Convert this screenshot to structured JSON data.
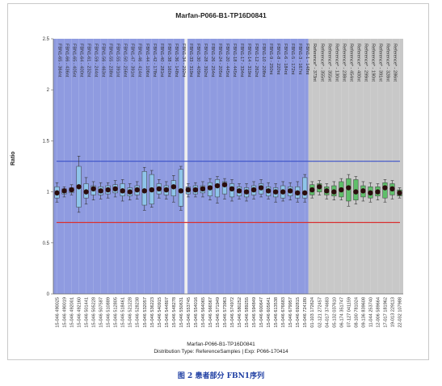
{
  "chart_title": "Marfan-P066-B1-TP16D0841",
  "ylabel": "Ratio",
  "footer": {
    "name": "Marfan-P066-B1-TP16D0841",
    "distribution": "Distribution Type: ReferenceSamples | Exp: P066-170414"
  },
  "caption": "图 2 患者部分 FBN1序列",
  "colors": {
    "fbn1_band": "#8f9be0",
    "reference_band": "#c8c8c8",
    "upper_line": "#3a52c8",
    "lower_line": "#d93030",
    "box_fbn1": "#8fc5ea",
    "box_reference": "#5fbf6a",
    "point": "#2a0d0d"
  },
  "chart_data": {
    "type": "box",
    "ylim": [
      0,
      2.5
    ],
    "yticks": [
      "0",
      "0.5",
      "1",
      "1.5",
      "2",
      "2.5"
    ],
    "upper_threshold": 1.3,
    "lower_threshold": 0.7,
    "probes": [
      {
        "label": "FBN1-65 - 364nt",
        "sample": "15-046 490025",
        "group": "fbn1",
        "value": 0.99,
        "box": [
          0.94,
          1.05
        ],
        "whisker": [
          0.9,
          1.09
        ]
      },
      {
        "label": "FBN1-66 - 436nt",
        "sample": "15-046 490019",
        "group": "fbn1",
        "value": 1.01,
        "box": [
          0.98,
          1.03
        ],
        "whisker": [
          0.95,
          1.05
        ]
      },
      {
        "label": "FBN1-65 - 405nt",
        "sample": "15-046 492001",
        "group": "fbn1",
        "value": 1.02,
        "box": [
          0.99,
          1.04
        ],
        "whisker": [
          0.97,
          1.07
        ]
      },
      {
        "label": "FBN1-64 - 400nt",
        "sample": "15-046 492160",
        "group": "fbn1",
        "value": 1.05,
        "box": [
          0.85,
          1.25
        ],
        "whisker": [
          0.8,
          1.35
        ]
      },
      {
        "label": "FBN1-61 - 232nt",
        "sample": "15-046 501441",
        "group": "fbn1",
        "value": 1.0,
        "box": [
          0.94,
          1.08
        ],
        "whisker": [
          0.88,
          1.14
        ]
      },
      {
        "label": "FBN1-59 - 244nt",
        "sample": "15-046 505228",
        "group": "fbn1",
        "value": 1.03,
        "box": [
          0.97,
          1.06
        ],
        "whisker": [
          0.92,
          1.1
        ]
      },
      {
        "label": "FBN1-56 - 463nt",
        "sample": "15-046 507587",
        "group": "fbn1",
        "value": 1.01,
        "box": [
          0.97,
          1.05
        ],
        "whisker": [
          0.93,
          1.09
        ]
      },
      {
        "label": "FBN1-55 - 238nt",
        "sample": "15-046 510889",
        "group": "fbn1",
        "value": 1.02,
        "box": [
          0.98,
          1.06
        ],
        "whisker": [
          0.94,
          1.09
        ]
      },
      {
        "label": "FBN1-55 - 391nt",
        "sample": "15-046 512805",
        "group": "fbn1",
        "value": 1.03,
        "box": [
          0.99,
          1.07
        ],
        "whisker": [
          0.95,
          1.11
        ]
      },
      {
        "label": "FBN1-50 - 256nt",
        "sample": "15-046 518461",
        "group": "fbn1",
        "value": 1.01,
        "box": [
          0.96,
          1.08
        ],
        "whisker": [
          0.91,
          1.12
        ]
      },
      {
        "label": "FBN1-47 - 391nt",
        "sample": "15-046 521228",
        "group": "fbn1",
        "value": 1.0,
        "box": [
          0.96,
          1.04
        ],
        "whisker": [
          0.92,
          1.08
        ]
      },
      {
        "label": "FBN1-46 - 414nt",
        "sample": "15-046 528238",
        "group": "fbn1",
        "value": 1.02,
        "box": [
          0.97,
          1.06
        ],
        "whisker": [
          0.93,
          1.1
        ]
      },
      {
        "label": "FBN1-44 - 106nt",
        "sample": "15-046 532057",
        "group": "fbn1",
        "value": 1.01,
        "box": [
          0.87,
          1.2
        ],
        "whisker": [
          0.82,
          1.24
        ]
      },
      {
        "label": "FBN1-42 - 178nt",
        "sample": "15-046 536223",
        "group": "fbn1",
        "value": 1.02,
        "box": [
          0.88,
          1.17
        ],
        "whisker": [
          0.85,
          1.21
        ]
      },
      {
        "label": "FBN1-40 - 281nt",
        "sample": "15-046 540915",
        "group": "fbn1",
        "value": 1.03,
        "box": [
          0.98,
          1.08
        ],
        "whisker": [
          0.94,
          1.12
        ]
      },
      {
        "label": "FBN1-38 - 160nt",
        "sample": "15-046 544807",
        "group": "fbn1",
        "value": 1.02,
        "box": [
          0.97,
          1.06
        ],
        "whisker": [
          0.93,
          1.1
        ]
      },
      {
        "label": "FBN1-36 - 148nt",
        "sample": "15-046 548278",
        "group": "fbn1",
        "value": 1.05,
        "box": [
          0.96,
          1.11
        ],
        "whisker": [
          0.9,
          1.16
        ]
      },
      {
        "label": "FBN1-34 - 292nt",
        "sample": "15-046 550631",
        "group": "fbn1",
        "value": 1.01,
        "box": [
          0.86,
          1.22
        ],
        "whisker": [
          0.82,
          1.25
        ]
      },
      {
        "label": "FBN1-33 - 319nt",
        "sample": "15-046 553745",
        "group": "fbn1",
        "value": 1.02,
        "box": [
          0.98,
          1.05
        ],
        "whisker": [
          0.95,
          1.08
        ]
      },
      {
        "label": "FBN1-30 - 409nt",
        "sample": "15-046 554016",
        "group": "fbn1",
        "value": 1.02,
        "box": [
          0.98,
          1.06
        ],
        "whisker": [
          0.95,
          1.09
        ]
      },
      {
        "label": "FBN1-28 - 392nt",
        "sample": "15-046 564065",
        "group": "fbn1",
        "value": 1.03,
        "box": [
          0.99,
          1.06
        ],
        "whisker": [
          0.95,
          1.1
        ]
      },
      {
        "label": "FBN1-26 - 254nt",
        "sample": "15-046 566567",
        "group": "fbn1",
        "value": 1.04,
        "box": [
          0.96,
          1.09
        ],
        "whisker": [
          0.92,
          1.13
        ]
      },
      {
        "label": "FBN1-24 - 205nt",
        "sample": "15-046 571949",
        "group": "fbn1",
        "value": 1.06,
        "box": [
          0.95,
          1.12
        ],
        "whisker": [
          0.89,
          1.15
        ]
      },
      {
        "label": "FBN1-20 - 445nt",
        "sample": "15-046 573963",
        "group": "fbn1",
        "value": 1.07,
        "box": [
          0.98,
          1.1
        ],
        "whisker": [
          0.93,
          1.13
        ]
      },
      {
        "label": "FBN1-18 - 445nt",
        "sample": "15-046 574972",
        "group": "fbn1",
        "value": 1.03,
        "box": [
          0.95,
          1.08
        ],
        "whisker": [
          0.91,
          1.12
        ]
      },
      {
        "label": "FBN1-17 - 334nt",
        "sample": "15-046 580252",
        "group": "fbn1",
        "value": 1.01,
        "box": [
          0.96,
          1.05
        ],
        "whisker": [
          0.93,
          1.08
        ]
      },
      {
        "label": "FBN1-14 - 319nt",
        "sample": "15-046 589255",
        "group": "fbn1",
        "value": 1.0,
        "box": [
          0.95,
          1.04
        ],
        "whisker": [
          0.91,
          1.08
        ]
      },
      {
        "label": "FBN1-12 - 262nt",
        "sample": "15-046 594849",
        "group": "fbn1",
        "value": 1.02,
        "box": [
          0.97,
          1.06
        ],
        "whisker": [
          0.93,
          1.1
        ]
      },
      {
        "label": "FBN1-10 - 208nt",
        "sample": "15-046 600647",
        "group": "fbn1",
        "value": 1.04,
        "box": [
          0.98,
          1.08
        ],
        "whisker": [
          0.95,
          1.12
        ]
      },
      {
        "label": "FBN1-9 - 250nt",
        "sample": "15-046 605641",
        "group": "fbn1",
        "value": 1.01,
        "box": [
          0.96,
          1.05
        ],
        "whisker": [
          0.93,
          1.09
        ]
      },
      {
        "label": "FBN1-8 - 220nt",
        "sample": "15-046 613538",
        "group": "fbn1",
        "value": 1.0,
        "box": [
          0.95,
          1.04
        ],
        "whisker": [
          0.9,
          1.08
        ]
      },
      {
        "label": "FBN1-6 - 184nt",
        "sample": "15-046 676683",
        "group": "fbn1",
        "value": 1.0,
        "box": [
          0.94,
          1.06
        ],
        "whisker": [
          0.91,
          1.1
        ]
      },
      {
        "label": "FBN1-5 - 172nt",
        "sample": "15-046 679957",
        "group": "fbn1",
        "value": 1.01,
        "box": [
          0.96,
          1.05
        ],
        "whisker": [
          0.92,
          1.09
        ]
      },
      {
        "label": "FBN1-3 - 167nt",
        "sample": "15-046 692815",
        "group": "fbn1",
        "value": 0.99,
        "box": [
          0.94,
          1.05
        ],
        "whisker": [
          0.9,
          1.1
        ]
      },
      {
        "label": "FBN1-1 - 148nt",
        "sample": "15-046 724180",
        "group": "fbn1",
        "value": 0.99,
        "box": [
          0.94,
          1.14
        ],
        "whisker": [
          0.9,
          1.17
        ]
      },
      {
        "label": "Reference* - 373nt",
        "sample": "01-103 172624",
        "group": "reference",
        "value": 1.02,
        "box": [
          0.97,
          1.07
        ],
        "whisker": [
          0.94,
          1.1
        ]
      },
      {
        "label": "Reference* - 355nt",
        "sample": "02-121 272457",
        "group": "reference",
        "value": 1.05,
        "box": [
          1.0,
          1.08
        ],
        "whisker": [
          0.97,
          1.11
        ]
      },
      {
        "label": "Reference* - 355nt",
        "sample": "04-017 374683",
        "group": "reference",
        "value": 1.01,
        "box": [
          0.97,
          1.05
        ],
        "whisker": [
          0.93,
          1.08
        ]
      },
      {
        "label": "Reference* - 130nt",
        "sample": "05-132 037610",
        "group": "reference",
        "value": 1.0,
        "box": [
          0.96,
          1.06
        ],
        "whisker": [
          0.92,
          1.1
        ]
      },
      {
        "label": "Reference* - 238nt",
        "sample": "06-174 351747",
        "group": "reference",
        "value": 1.02,
        "box": [
          0.95,
          1.1
        ],
        "whisker": [
          0.92,
          1.13
        ]
      },
      {
        "label": "Reference* - 454nt",
        "sample": "07-127 041159",
        "group": "reference",
        "value": 1.04,
        "box": [
          0.91,
          1.13
        ],
        "whisker": [
          0.86,
          1.17
        ]
      },
      {
        "label": "Reference* - 400nt",
        "sample": "08-100 781024",
        "group": "reference",
        "value": 1.0,
        "box": [
          0.92,
          1.12
        ],
        "whisker": [
          0.88,
          1.15
        ]
      },
      {
        "label": "Reference* - 299nt",
        "sample": "09-136 839608",
        "group": "reference",
        "value": 1.01,
        "box": [
          0.95,
          1.06
        ],
        "whisker": [
          0.91,
          1.1
        ]
      },
      {
        "label": "Reference* - 190nt",
        "sample": "11-044 253740",
        "group": "reference",
        "value": 0.99,
        "box": [
          0.94,
          1.05
        ],
        "whisker": [
          0.9,
          1.09
        ]
      },
      {
        "label": "Reference* - 391nt",
        "sample": "12-006 589664",
        "group": "reference",
        "value": 1.0,
        "box": [
          0.96,
          1.05
        ],
        "whisker": [
          0.92,
          1.08
        ]
      },
      {
        "label": "Reference* - 328nt",
        "sample": "17-017 181962",
        "group": "reference",
        "value": 1.04,
        "box": [
          0.94,
          1.09
        ],
        "whisker": [
          0.9,
          1.12
        ]
      },
      {
        "label": "Reference* - 286nt",
        "sample": "19-013 229113",
        "group": "reference",
        "value": 1.03,
        "box": [
          0.97,
          1.08
        ],
        "whisker": [
          0.93,
          1.11
        ]
      },
      {
        "label": "",
        "sample": "22-032 107988",
        "group": "reference",
        "value": 0.99,
        "box": [
          0.96,
          1.02
        ],
        "whisker": [
          0.94,
          1.04
        ]
      }
    ]
  }
}
